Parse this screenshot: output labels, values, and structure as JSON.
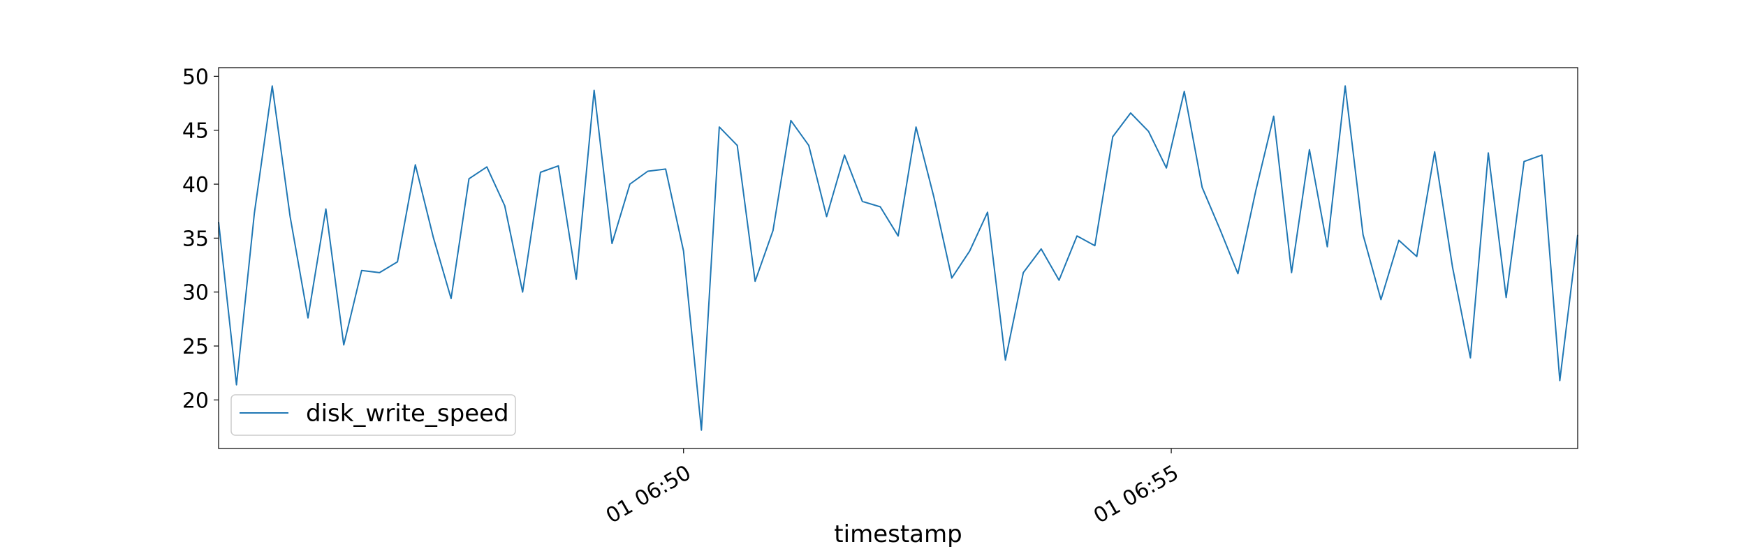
{
  "chart_data": {
    "type": "line",
    "xlabel": "timestamp",
    "ylabel": "",
    "x_tick_labels": [
      "01 06:50",
      "01 06:55"
    ],
    "y_ticks": [
      20,
      25,
      30,
      35,
      40,
      45,
      50
    ],
    "ylim": [
      15.5,
      50.8
    ],
    "grid": false,
    "legend_position": "lower left",
    "line_color": "#1f77b4",
    "x_start": "06:45:14",
    "x_interval_seconds": 11,
    "series": [
      {
        "name": "disk_write_speed",
        "values": [
          36.5,
          21.4,
          37.3,
          49.1,
          37.0,
          27.6,
          37.7,
          25.1,
          32.0,
          31.8,
          32.8,
          41.8,
          35.1,
          29.4,
          40.5,
          41.6,
          38.0,
          30.0,
          41.1,
          41.7,
          31.2,
          48.7,
          34.5,
          40.0,
          41.2,
          41.4,
          33.8,
          17.2,
          45.3,
          43.6,
          31.0,
          35.7,
          45.9,
          43.6,
          37.0,
          42.7,
          38.4,
          37.9,
          35.2,
          45.3,
          38.8,
          31.3,
          33.8,
          37.4,
          23.7,
          31.8,
          34.0,
          31.1,
          35.2,
          34.3,
          44.4,
          46.6,
          44.9,
          41.5,
          48.6,
          39.7,
          35.8,
          31.7,
          39.4,
          46.3,
          31.8,
          43.2,
          34.2,
          49.1,
          35.3,
          29.3,
          34.8,
          33.3,
          43.0,
          32.3,
          23.9,
          42.9,
          29.5,
          42.1,
          42.7,
          21.8,
          35.3
        ]
      }
    ]
  }
}
